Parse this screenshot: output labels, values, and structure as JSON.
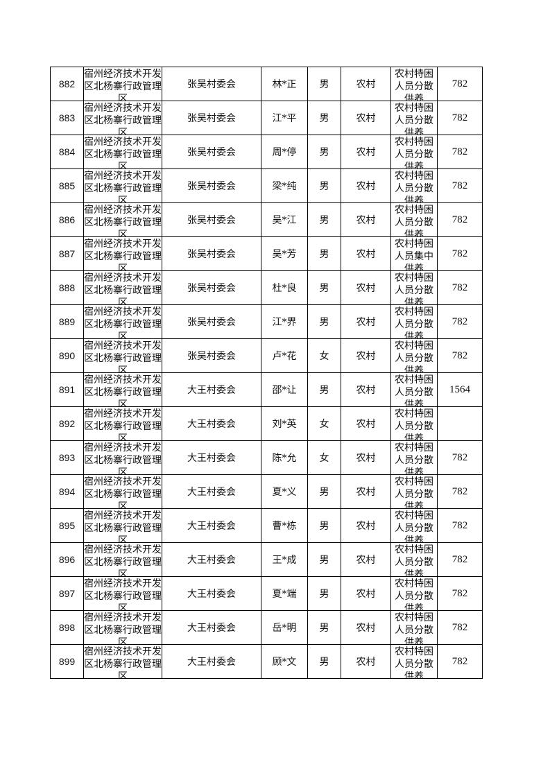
{
  "rows": [
    {
      "no": "882",
      "area": "宿州经济技术开发区北杨寨行政管理区",
      "village": "张吴村委会",
      "name": "林*正",
      "gender": "男",
      "type": "农村",
      "category": "农村特困人员分散供养",
      "amount": "782"
    },
    {
      "no": "883",
      "area": "宿州经济技术开发区北杨寨行政管理区",
      "village": "张吴村委会",
      "name": "江*平",
      "gender": "男",
      "type": "农村",
      "category": "农村特困人员分散供养",
      "amount": "782"
    },
    {
      "no": "884",
      "area": "宿州经济技术开发区北杨寨行政管理区",
      "village": "张吴村委会",
      "name": "周*停",
      "gender": "男",
      "type": "农村",
      "category": "农村特困人员分散供养",
      "amount": "782"
    },
    {
      "no": "885",
      "area": "宿州经济技术开发区北杨寨行政管理区",
      "village": "张吴村委会",
      "name": "梁*纯",
      "gender": "男",
      "type": "农村",
      "category": "农村特困人员分散供养",
      "amount": "782"
    },
    {
      "no": "886",
      "area": "宿州经济技术开发区北杨寨行政管理区",
      "village": "张吴村委会",
      "name": "吴*江",
      "gender": "男",
      "type": "农村",
      "category": "农村特困人员分散供养",
      "amount": "782"
    },
    {
      "no": "887",
      "area": "宿州经济技术开发区北杨寨行政管理区",
      "village": "张吴村委会",
      "name": "吴*芳",
      "gender": "男",
      "type": "农村",
      "category": "农村特困人员集中供养",
      "amount": "782"
    },
    {
      "no": "888",
      "area": "宿州经济技术开发区北杨寨行政管理区",
      "village": "张吴村委会",
      "name": "杜*良",
      "gender": "男",
      "type": "农村",
      "category": "农村特困人员分散供养",
      "amount": "782"
    },
    {
      "no": "889",
      "area": "宿州经济技术开发区北杨寨行政管理区",
      "village": "张吴村委会",
      "name": "江*界",
      "gender": "男",
      "type": "农村",
      "category": "农村特困人员分散供养",
      "amount": "782"
    },
    {
      "no": "890",
      "area": "宿州经济技术开发区北杨寨行政管理区",
      "village": "张吴村委会",
      "name": "卢*花",
      "gender": "女",
      "type": "农村",
      "category": "农村特困人员分散供养",
      "amount": "782"
    },
    {
      "no": "891",
      "area": "宿州经济技术开发区北杨寨行政管理区",
      "village": "大王村委会",
      "name": "邵*让",
      "gender": "男",
      "type": "农村",
      "category": "农村特困人员分散供养",
      "amount": "1564"
    },
    {
      "no": "892",
      "area": "宿州经济技术开发区北杨寨行政管理区",
      "village": "大王村委会",
      "name": "刘*英",
      "gender": "女",
      "type": "农村",
      "category": "农村特困人员分散供养",
      "amount": ""
    },
    {
      "no": "893",
      "area": "宿州经济技术开发区北杨寨行政管理区",
      "village": "大王村委会",
      "name": "陈*允",
      "gender": "女",
      "type": "农村",
      "category": "农村特困人员分散供养",
      "amount": "782"
    },
    {
      "no": "894",
      "area": "宿州经济技术开发区北杨寨行政管理区",
      "village": "大王村委会",
      "name": "夏*义",
      "gender": "男",
      "type": "农村",
      "category": "农村特困人员分散供养",
      "amount": "782"
    },
    {
      "no": "895",
      "area": "宿州经济技术开发区北杨寨行政管理区",
      "village": "大王村委会",
      "name": "曹*栋",
      "gender": "男",
      "type": "农村",
      "category": "农村特困人员分散供养",
      "amount": "782"
    },
    {
      "no": "896",
      "area": "宿州经济技术开发区北杨寨行政管理区",
      "village": "大王村委会",
      "name": "王*成",
      "gender": "男",
      "type": "农村",
      "category": "农村特困人员分散供养",
      "amount": "782"
    },
    {
      "no": "897",
      "area": "宿州经济技术开发区北杨寨行政管理区",
      "village": "大王村委会",
      "name": "夏*端",
      "gender": "男",
      "type": "农村",
      "category": "农村特困人员分散供养",
      "amount": "782"
    },
    {
      "no": "898",
      "area": "宿州经济技术开发区北杨寨行政管理区",
      "village": "大王村委会",
      "name": "岳*明",
      "gender": "男",
      "type": "农村",
      "category": "农村特困人员分散供养",
      "amount": "782"
    },
    {
      "no": "899",
      "area": "宿州经济技术开发区北杨寨行政管理区",
      "village": "大王村委会",
      "name": "顾*文",
      "gender": "男",
      "type": "农村",
      "category": "农村特困人员分散供养",
      "amount": "782"
    }
  ]
}
